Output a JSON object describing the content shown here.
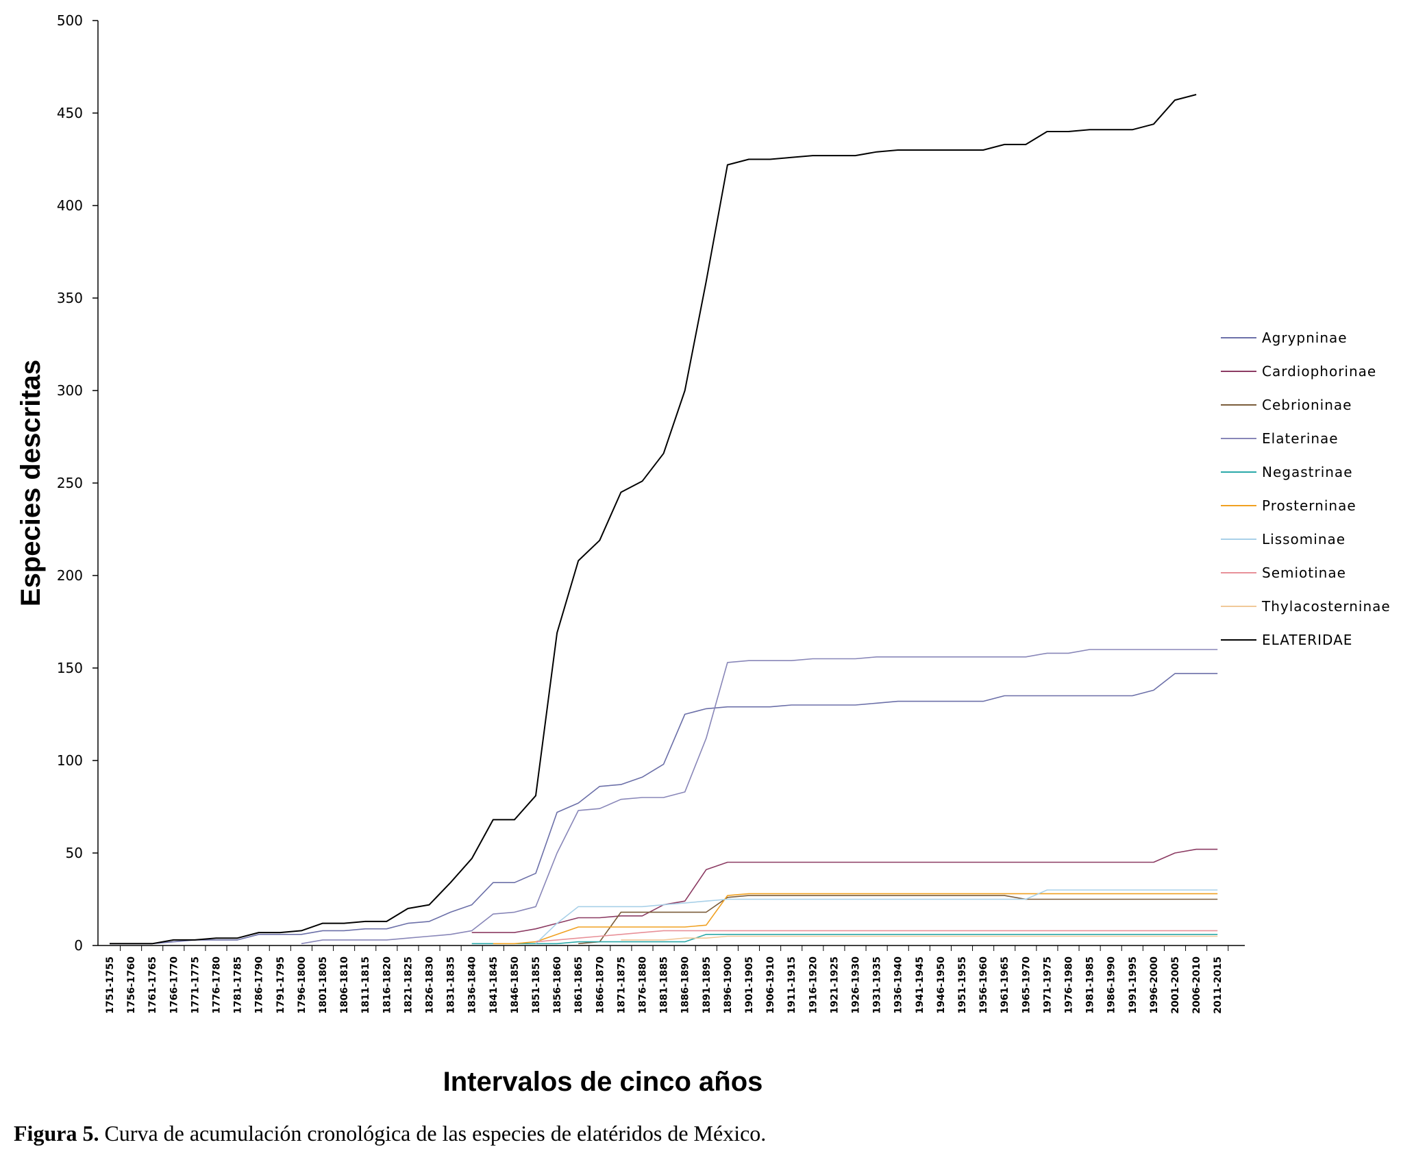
{
  "caption": {
    "label": "Figura 5.",
    "text": " Curva de acumulación cronológica de las especies de elatéridos de México."
  },
  "chart_data": {
    "type": "line",
    "title": "",
    "xlabel": "Intervalos de cinco años",
    "ylabel": "Especies descritas",
    "ylim": [
      0,
      500
    ],
    "yticks": [
      0,
      50,
      100,
      150,
      200,
      250,
      300,
      350,
      400,
      450,
      500
    ],
    "grid": false,
    "legend_position": "right",
    "categories": [
      "1751-1755",
      "1756-1760",
      "1761-1765",
      "1766-1770",
      "1771-1775",
      "1776-1780",
      "1781-1785",
      "1786-1790",
      "1791-1795",
      "1796-1800",
      "1801-1805",
      "1806-1810",
      "1811-1815",
      "1816-1820",
      "1821-1825",
      "1826-1830",
      "1831-1835",
      "1836-1840",
      "1841-1845",
      "1846-1850",
      "1851-1855",
      "1856-1860",
      "1861-1865",
      "1866-1870",
      "1871-1875",
      "1876-1880",
      "1881-1885",
      "1886-1890",
      "1891-1895",
      "1896-1900",
      "1901-1905",
      "1906-1910",
      "1911-1915",
      "1916-1920",
      "1921-1925",
      "1926-1930",
      "1931-1935",
      "1936-1940",
      "1941-1945",
      "1946-1950",
      "1951-1955",
      "1956-1960",
      "1961-1965",
      "1965-1970",
      "1971-1975",
      "1976-1980",
      "1981-1985",
      "1986-1990",
      "1991-1995",
      "1996-2000",
      "2001-2005",
      "2006-2010",
      "2011-2015"
    ],
    "series": [
      {
        "name": "Agrypninae",
        "color": "#6b6fa8",
        "values": [
          1,
          1,
          1,
          2,
          3,
          3,
          3,
          6,
          6,
          6,
          8,
          8,
          9,
          9,
          12,
          13,
          18,
          22,
          34,
          34,
          39,
          72,
          77,
          86,
          87,
          91,
          98,
          125,
          128,
          129,
          129,
          129,
          130,
          130,
          130,
          130,
          131,
          132,
          132,
          132,
          132,
          132,
          135,
          135,
          135,
          135,
          135,
          135,
          135,
          138,
          147,
          147,
          147
        ]
      },
      {
        "name": "Cardiophorinae",
        "color": "#8b3a62",
        "values": [
          null,
          null,
          null,
          null,
          null,
          null,
          null,
          null,
          null,
          null,
          null,
          null,
          null,
          null,
          null,
          null,
          null,
          7,
          7,
          7,
          9,
          12,
          15,
          15,
          16,
          16,
          22,
          24,
          41,
          45,
          45,
          45,
          45,
          45,
          45,
          45,
          45,
          45,
          45,
          45,
          45,
          45,
          45,
          45,
          45,
          45,
          45,
          45,
          45,
          45,
          50,
          52,
          52
        ]
      },
      {
        "name": "Cebrioninae",
        "color": "#7a5c3a",
        "values": [
          null,
          null,
          null,
          null,
          null,
          null,
          null,
          null,
          null,
          null,
          null,
          null,
          null,
          null,
          null,
          null,
          null,
          null,
          null,
          null,
          null,
          null,
          1,
          2,
          18,
          18,
          18,
          18,
          18,
          26,
          27,
          27,
          27,
          27,
          27,
          27,
          27,
          27,
          27,
          27,
          27,
          27,
          27,
          25,
          25,
          25,
          25,
          25,
          25,
          25,
          25,
          25,
          25
        ]
      },
      {
        "name": "Elaterinae",
        "color": "#8886b8",
        "values": [
          null,
          null,
          null,
          null,
          null,
          null,
          null,
          null,
          null,
          1,
          3,
          3,
          3,
          3,
          4,
          5,
          6,
          8,
          17,
          18,
          21,
          50,
          73,
          74,
          79,
          80,
          80,
          83,
          112,
          153,
          154,
          154,
          154,
          155,
          155,
          155,
          156,
          156,
          156,
          156,
          156,
          156,
          156,
          156,
          158,
          158,
          160,
          160,
          160,
          160,
          160,
          160,
          160
        ]
      },
      {
        "name": "Negastrinae",
        "color": "#2aa8a8",
        "values": [
          null,
          null,
          null,
          null,
          null,
          null,
          null,
          null,
          null,
          null,
          null,
          null,
          null,
          null,
          null,
          null,
          null,
          1,
          1,
          1,
          1,
          1,
          2,
          2,
          2,
          2,
          2,
          2,
          6,
          6,
          6,
          6,
          6,
          6,
          6,
          6,
          6,
          6,
          6,
          6,
          6,
          6,
          6,
          6,
          6,
          6,
          6,
          6,
          6,
          6,
          6,
          6,
          6
        ]
      },
      {
        "name": "Prosterninae",
        "color": "#f0a020",
        "values": [
          null,
          null,
          null,
          null,
          null,
          null,
          null,
          null,
          null,
          null,
          null,
          null,
          null,
          null,
          null,
          null,
          null,
          null,
          1,
          1,
          2,
          6,
          10,
          10,
          10,
          10,
          10,
          10,
          11,
          27,
          28,
          28,
          28,
          28,
          28,
          28,
          28,
          28,
          28,
          28,
          28,
          28,
          28,
          28,
          28,
          28,
          28,
          28,
          28,
          28,
          28,
          28,
          28
        ]
      },
      {
        "name": "Lissominae",
        "color": "#a8d0e8",
        "values": [
          null,
          null,
          null,
          null,
          null,
          null,
          null,
          null,
          null,
          null,
          null,
          null,
          null,
          null,
          null,
          null,
          null,
          null,
          null,
          null,
          1,
          12,
          21,
          21,
          21,
          21,
          22,
          23,
          24,
          25,
          25,
          25,
          25,
          25,
          25,
          25,
          25,
          25,
          25,
          25,
          25,
          25,
          25,
          25,
          30,
          30,
          30,
          30,
          30,
          30,
          30,
          30,
          30
        ]
      },
      {
        "name": "Semiotinae",
        "color": "#e89098",
        "values": [
          null,
          null,
          null,
          null,
          null,
          null,
          null,
          null,
          null,
          null,
          null,
          null,
          null,
          null,
          null,
          null,
          null,
          null,
          null,
          null,
          2,
          3,
          4,
          5,
          6,
          7,
          8,
          8,
          8,
          8,
          8,
          8,
          8,
          8,
          8,
          8,
          8,
          8,
          8,
          8,
          8,
          8,
          8,
          8,
          8,
          8,
          8,
          8,
          8,
          8,
          8,
          8,
          8
        ]
      },
      {
        "name": "Thylacosterninae",
        "color": "#f0c898",
        "values": [
          null,
          null,
          null,
          null,
          null,
          null,
          null,
          null,
          null,
          null,
          null,
          null,
          null,
          null,
          null,
          null,
          null,
          null,
          null,
          null,
          null,
          null,
          null,
          null,
          3,
          3,
          3,
          4,
          4,
          5,
          5,
          5,
          5,
          5,
          5,
          5,
          5,
          5,
          5,
          5,
          5,
          5,
          5,
          5,
          5,
          5,
          5,
          5,
          5,
          5,
          5,
          5,
          5
        ]
      },
      {
        "name": "ELATERIDAE",
        "color": "#000000",
        "values": [
          1,
          1,
          1,
          3,
          3,
          4,
          4,
          7,
          7,
          8,
          12,
          12,
          13,
          13,
          20,
          22,
          34,
          47,
          68,
          68,
          81,
          169,
          208,
          219,
          245,
          251,
          266,
          300,
          359,
          422,
          425,
          425,
          426,
          427,
          427,
          427,
          429,
          430,
          430,
          430,
          430,
          430,
          433,
          433,
          440,
          440,
          441,
          441,
          441,
          444,
          457,
          460,
          null
        ]
      }
    ]
  }
}
